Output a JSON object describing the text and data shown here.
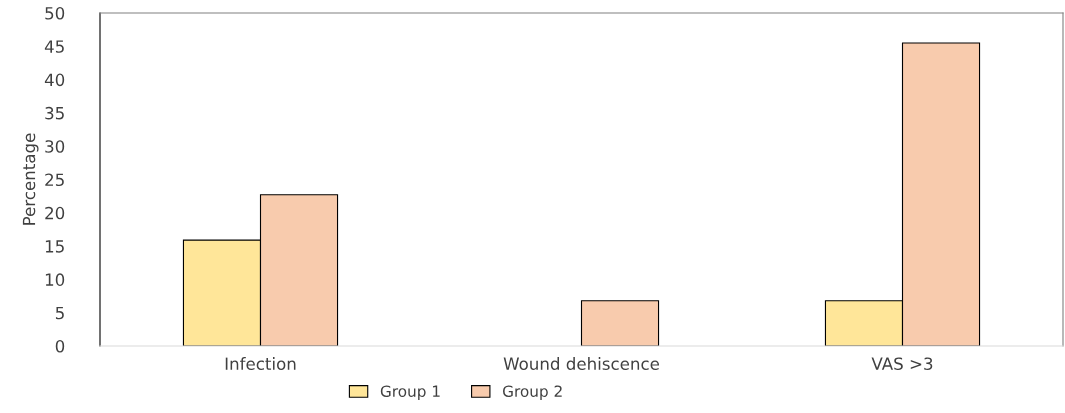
{
  "chart_data": {
    "type": "bar",
    "ylabel": "Percentage",
    "categories": [
      "Infection",
      "Wound dehiscence",
      "VAS >3"
    ],
    "series": [
      {
        "name": "Group 1",
        "color": "#ffe699",
        "values": [
          15.9,
          0,
          6.8
        ]
      },
      {
        "name": "Group 2",
        "color": "#f8cbad",
        "values": [
          22.7,
          6.8,
          45.5
        ]
      }
    ],
    "ylim": [
      0,
      50
    ],
    "yticks": [
      0,
      5,
      10,
      15,
      20,
      25,
      30,
      35,
      40,
      45,
      50
    ],
    "grid": false,
    "legend": "bottom"
  }
}
